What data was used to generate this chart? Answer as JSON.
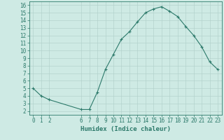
{
  "x": [
    0,
    1,
    2,
    6,
    7,
    8,
    9,
    10,
    11,
    12,
    13,
    14,
    15,
    16,
    17,
    18,
    19,
    20,
    21,
    22,
    23
  ],
  "y": [
    5,
    4,
    3.5,
    2.2,
    2.2,
    4.5,
    7.5,
    9.5,
    11.5,
    12.5,
    13.8,
    15,
    15.5,
    15.8,
    15.2,
    14.5,
    13.2,
    12,
    10.5,
    8.5,
    7.5
  ],
  "line_color": "#2d7a6b",
  "marker": "+",
  "bg_color": "#ceeae4",
  "grid_color_major": "#aecfc8",
  "grid_color_minor": "#bee0d8",
  "xlabel": "Humidex (Indice chaleur)",
  "xlim": [
    -0.5,
    23.5
  ],
  "ylim": [
    1.5,
    16.5
  ],
  "xticks": [
    0,
    1,
    2,
    6,
    7,
    8,
    9,
    10,
    11,
    12,
    13,
    14,
    15,
    16,
    17,
    18,
    19,
    20,
    21,
    22,
    23
  ],
  "yticks": [
    2,
    3,
    4,
    5,
    6,
    7,
    8,
    9,
    10,
    11,
    12,
    13,
    14,
    15,
    16
  ],
  "tick_fontsize": 5.5,
  "xlabel_fontsize": 6.5,
  "linewidth": 0.8,
  "markersize": 3.5,
  "markeredgewidth": 0.8
}
